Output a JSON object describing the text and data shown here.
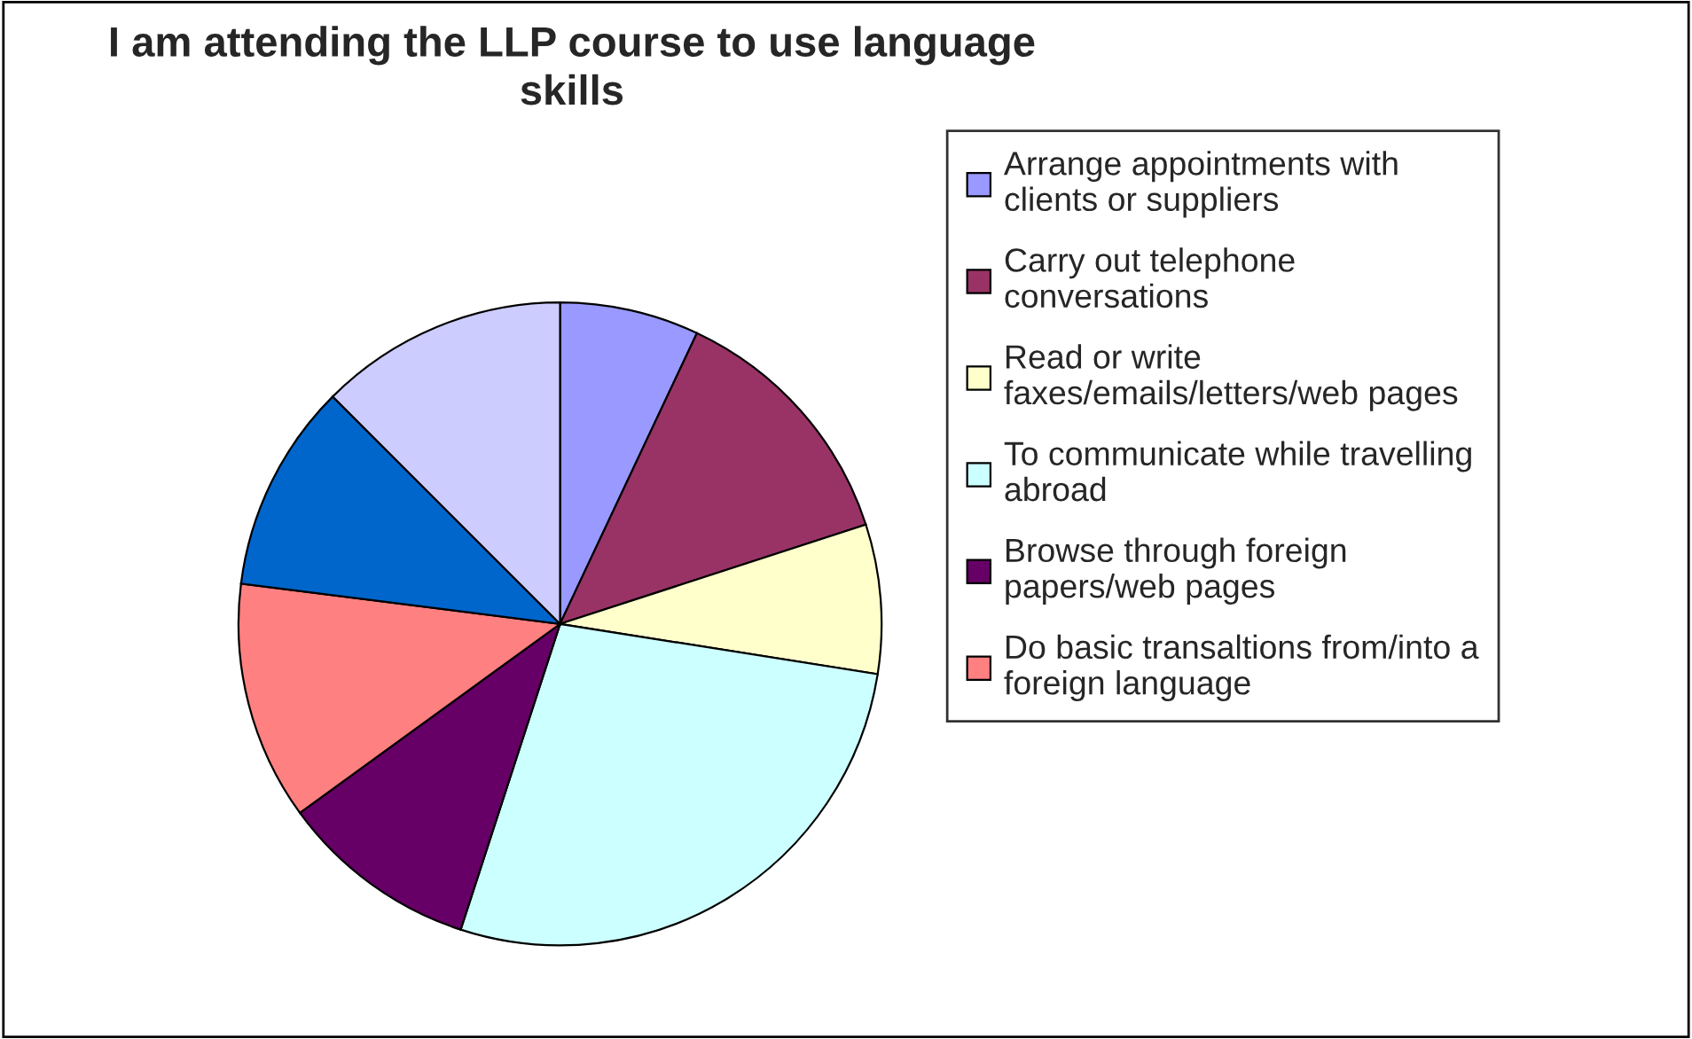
{
  "chart_data": {
    "type": "pie",
    "title": "I am attending the LLP course to use language\nskills",
    "categories": [
      "Arrange appointments with\nclients or suppliers",
      "Carry out telephone\nconversations",
      "Read or write\nfaxes/emails/letters/web pages",
      "To communicate while travelling\nabroad",
      "Browse through foreign\npapers/web pages",
      "Do basic transaltions from/into a\nforeign language",
      null,
      null
    ],
    "values": [
      7,
      13,
      7.5,
      27.5,
      10,
      12,
      10.5,
      12.5
    ],
    "colors": [
      "#9999ff",
      "#993366",
      "#ffffcc",
      "#ccffff",
      "#660066",
      "#ff8080",
      "#0066cc",
      "#ccccff"
    ],
    "legend": "right"
  }
}
